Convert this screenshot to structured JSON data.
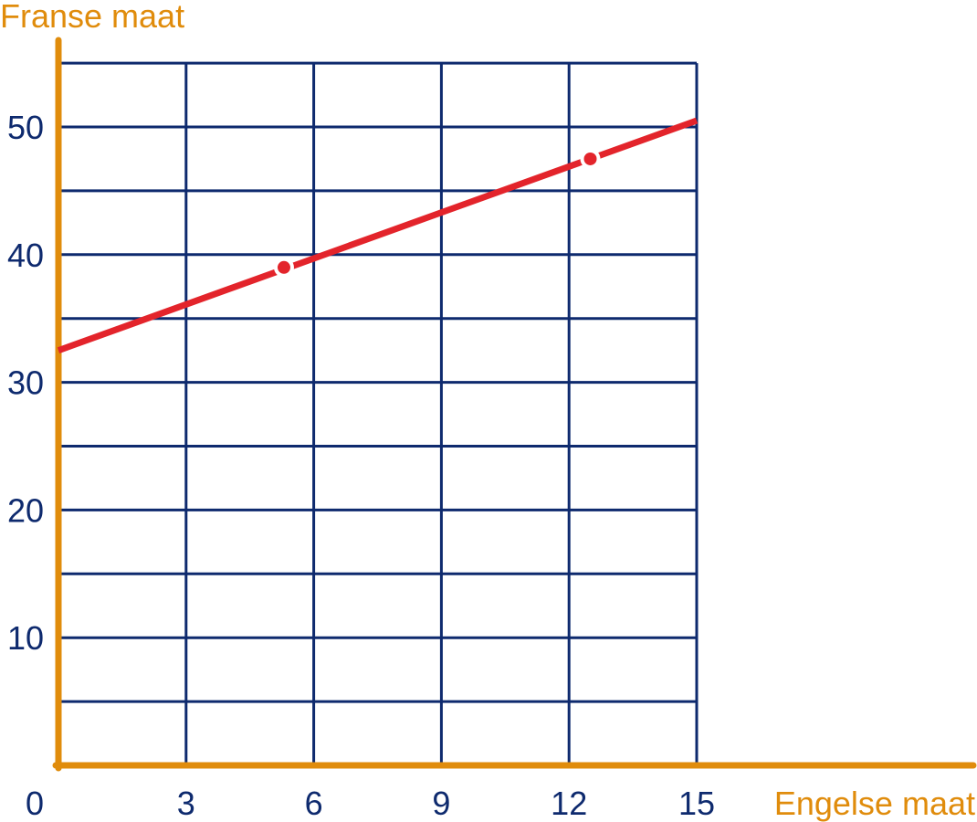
{
  "chart_data": {
    "type": "line",
    "xlabel": "Engelse maat",
    "ylabel": "Franse maat",
    "xlim": [
      0,
      15
    ],
    "ylim": [
      0,
      55
    ],
    "x_ticks": [
      0,
      3,
      6,
      9,
      12,
      15
    ],
    "y_ticks": [
      10,
      20,
      30,
      40,
      50
    ],
    "grid": true,
    "series": [
      {
        "x": [
          0,
          15
        ],
        "y": [
          32.5,
          50.5
        ],
        "highlighted_points": [
          {
            "x": 5.3,
            "y": 39
          },
          {
            "x": 12.5,
            "y": 47.5
          }
        ]
      }
    ],
    "colors": {
      "axis": "#e08c0c",
      "grid": "#0e2a6e",
      "line": "#e3242b",
      "axis_title": "#e08c0c",
      "tick_label": "#0e2a6e"
    }
  }
}
